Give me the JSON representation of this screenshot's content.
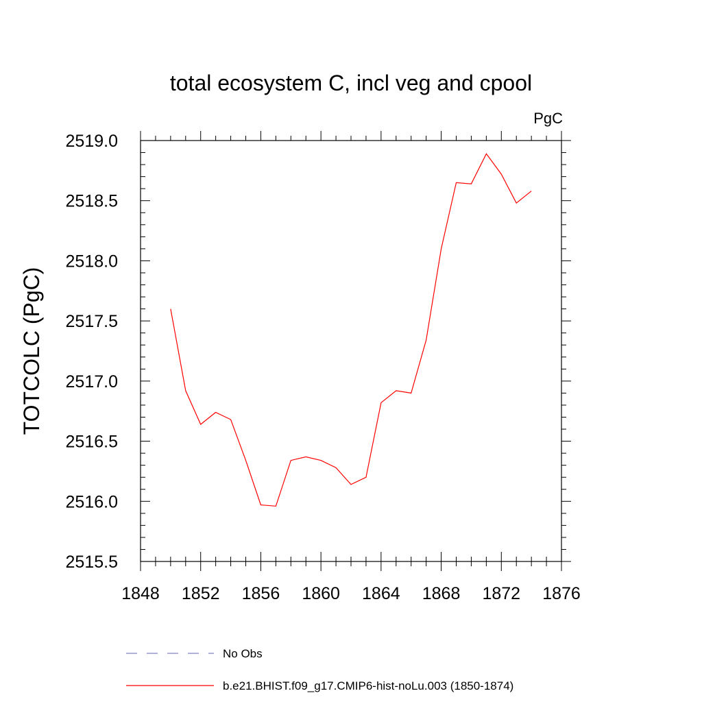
{
  "chart_data": {
    "type": "line",
    "title": "total ecosystem C, incl veg and cpool",
    "units": "PgC",
    "ylabel": "TOTCOLC  (PgC)",
    "xlabel": "",
    "xlim": [
      1848,
      1876
    ],
    "ylim": [
      2515.5,
      2519.0
    ],
    "xticks": [
      1848,
      1852,
      1856,
      1860,
      1864,
      1868,
      1872,
      1876
    ],
    "xtick_labels": [
      "1848",
      "1852",
      "1856",
      "1860",
      "1864",
      "1868",
      "1872",
      "1876"
    ],
    "yticks": [
      2515.5,
      2516.0,
      2516.5,
      2517.0,
      2517.5,
      2518.0,
      2518.5,
      2519.0
    ],
    "ytick_labels": [
      "2515.5",
      "2516.0",
      "2516.5",
      "2517.0",
      "2517.5",
      "2518.0",
      "2518.5",
      "2519.0"
    ],
    "grid": false,
    "legend_position": "bottom",
    "series": [
      {
        "name": "No Obs",
        "color": "#8080c0",
        "style": "dashed",
        "x": [],
        "y": []
      },
      {
        "name": "b.e21.BHIST.f09_g17.CMIP6-hist-noLu.003 (1850-1874)",
        "color": "#ff0000",
        "style": "solid",
        "x": [
          1850,
          1851,
          1852,
          1853,
          1854,
          1855,
          1856,
          1857,
          1858,
          1859,
          1860,
          1861,
          1862,
          1863,
          1864,
          1865,
          1866,
          1867,
          1868,
          1869,
          1870,
          1871,
          1872,
          1873,
          1874
        ],
        "y": [
          2517.6,
          2516.92,
          2516.64,
          2516.74,
          2516.68,
          2516.34,
          2515.97,
          2515.96,
          2516.34,
          2516.37,
          2516.34,
          2516.28,
          2516.14,
          2516.2,
          2516.82,
          2516.92,
          2516.9,
          2517.34,
          2518.1,
          2518.65,
          2518.64,
          2518.89,
          2518.72,
          2518.48,
          2518.58
        ]
      }
    ]
  }
}
